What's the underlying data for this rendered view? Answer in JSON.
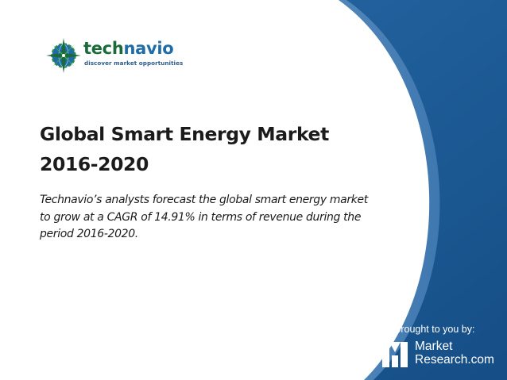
{
  "brand": {
    "name_part1": "tech",
    "name_part2": "navio",
    "tagline": "discover market opportunities"
  },
  "title": {
    "line1": "Global Smart Energy Market",
    "line2": "2016-2020"
  },
  "description": "Technavio’s analysts forecast the global smart energy market to grow at a CAGR of 14.91% in terms of revenue during the period 2016-2020.",
  "footer": {
    "brought_label": "Brought to you by:",
    "partner_line1": "Market",
    "partner_line2": "Research.com"
  },
  "colors": {
    "background_blue": "#1d5b96",
    "panel_white": "#ffffff",
    "title_text": "#1b1b1b",
    "logo_green": "#1a6a3a",
    "logo_blue": "#1e6ca8"
  }
}
